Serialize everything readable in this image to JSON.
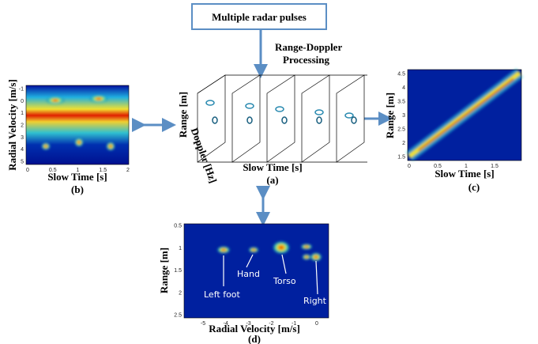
{
  "header": {
    "title": "Multiple radar pulses",
    "process": [
      "Range-Doppler",
      "Processing"
    ]
  },
  "panel_a": {
    "ylabel": "Range [m]",
    "zlabel": "Doppler [Hz]",
    "xlabel": "Slow Time [s]",
    "caption": "(a)"
  },
  "panel_b": {
    "ylabel": "Radial Velocity [m/s]",
    "xlabel": "Slow Time [s]",
    "caption": "(b)",
    "yticks": [
      -1,
      0,
      1,
      2,
      3,
      4,
      5
    ],
    "xticks": [
      0,
      0.5,
      1,
      1.5,
      2
    ]
  },
  "panel_c": {
    "ylabel": "Range [m]",
    "xlabel": "Slow Time [s]",
    "caption": "(c)",
    "yticks": [
      1.5,
      2,
      2.5,
      3,
      3.5,
      4,
      4.5
    ],
    "xticks": [
      0,
      0.5,
      1,
      1.5
    ]
  },
  "panel_d": {
    "ylabel": "Range [m]",
    "xlabel": "Radial Velocity [m/s]",
    "caption": "(d)",
    "yticks": [
      0.5,
      1,
      1.5,
      2,
      2.5
    ],
    "xticks": [
      -5,
      -4,
      -3,
      -2,
      -1,
      0
    ],
    "annotations": [
      "Left foot",
      "Hand",
      "Torso",
      "Right foot"
    ]
  }
}
